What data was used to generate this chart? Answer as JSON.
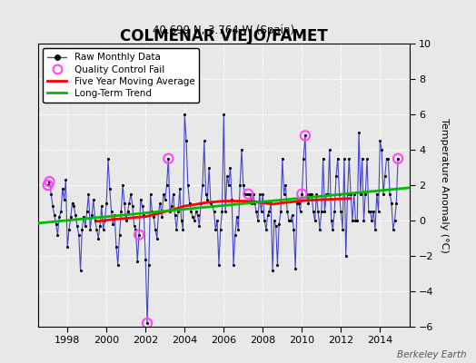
{
  "title": "COLMENAR VIEJO/FAMET",
  "subtitle": "40.699 N, 3.764 W (Spain)",
  "ylabel": "Temperature Anomaly (°C)",
  "credit": "Berkeley Earth",
  "ylim": [
    -6,
    10
  ],
  "yticks": [
    -6,
    -4,
    -2,
    0,
    2,
    4,
    6,
    8,
    10
  ],
  "xlim": [
    1996.5,
    2015.5
  ],
  "xticks": [
    1998,
    2000,
    2002,
    2004,
    2006,
    2008,
    2010,
    2012,
    2014
  ],
  "background_color": "#e8e8e8",
  "plot_bg_color": "#e8e8e8",
  "raw_line_color": "#4444cc",
  "raw_marker_color": "#000000",
  "moving_avg_color": "#ff0000",
  "trend_color": "#00bb00",
  "qc_fail_color": "#ff44ff",
  "raw_monthly": [
    [
      1997.0,
      2.0
    ],
    [
      1997.083,
      2.2
    ],
    [
      1997.167,
      1.5
    ],
    [
      1997.25,
      0.8
    ],
    [
      1997.333,
      0.3
    ],
    [
      1997.417,
      -0.2
    ],
    [
      1997.5,
      -0.8
    ],
    [
      1997.583,
      0.2
    ],
    [
      1997.667,
      0.5
    ],
    [
      1997.75,
      1.8
    ],
    [
      1997.833,
      1.2
    ],
    [
      1997.917,
      2.3
    ],
    [
      1998.0,
      -1.5
    ],
    [
      1998.083,
      -0.5
    ],
    [
      1998.167,
      0.2
    ],
    [
      1998.25,
      1.0
    ],
    [
      1998.333,
      0.8
    ],
    [
      1998.417,
      0.3
    ],
    [
      1998.5,
      -0.3
    ],
    [
      1998.583,
      -0.8
    ],
    [
      1998.667,
      -2.8
    ],
    [
      1998.75,
      -0.5
    ],
    [
      1998.833,
      0.2
    ],
    [
      1998.917,
      -0.3
    ],
    [
      1999.0,
      0.5
    ],
    [
      1999.083,
      1.5
    ],
    [
      1999.167,
      -0.5
    ],
    [
      1999.25,
      0.3
    ],
    [
      1999.333,
      1.2
    ],
    [
      1999.417,
      0.0
    ],
    [
      1999.5,
      -0.5
    ],
    [
      1999.583,
      -1.0
    ],
    [
      1999.667,
      -0.3
    ],
    [
      1999.75,
      0.8
    ],
    [
      1999.833,
      -0.5
    ],
    [
      1999.917,
      0.0
    ],
    [
      2000.0,
      1.0
    ],
    [
      2000.083,
      3.5
    ],
    [
      2000.167,
      1.8
    ],
    [
      2000.25,
      0.5
    ],
    [
      2000.333,
      -0.2
    ],
    [
      2000.417,
      0.3
    ],
    [
      2000.5,
      -1.5
    ],
    [
      2000.583,
      -2.5
    ],
    [
      2000.667,
      -0.8
    ],
    [
      2000.75,
      0.5
    ],
    [
      2000.833,
      2.0
    ],
    [
      2000.917,
      1.0
    ],
    [
      2001.0,
      0.0
    ],
    [
      2001.083,
      0.5
    ],
    [
      2001.167,
      1.0
    ],
    [
      2001.25,
      1.5
    ],
    [
      2001.333,
      0.8
    ],
    [
      2001.417,
      -0.3
    ],
    [
      2001.5,
      -0.5
    ],
    [
      2001.583,
      -2.3
    ],
    [
      2001.667,
      -0.8
    ],
    [
      2001.75,
      1.2
    ],
    [
      2001.833,
      0.8
    ],
    [
      2001.917,
      0.3
    ],
    [
      2002.0,
      -2.2
    ],
    [
      2002.083,
      -5.8
    ],
    [
      2002.167,
      -2.5
    ],
    [
      2002.25,
      1.5
    ],
    [
      2002.333,
      0.5
    ],
    [
      2002.417,
      0.2
    ],
    [
      2002.5,
      -0.5
    ],
    [
      2002.583,
      -1.0
    ],
    [
      2002.667,
      0.5
    ],
    [
      2002.75,
      1.0
    ],
    [
      2002.833,
      0.2
    ],
    [
      2002.917,
      1.5
    ],
    [
      2003.0,
      1.2
    ],
    [
      2003.083,
      2.0
    ],
    [
      2003.167,
      3.5
    ],
    [
      2003.25,
      0.5
    ],
    [
      2003.333,
      0.8
    ],
    [
      2003.417,
      1.5
    ],
    [
      2003.5,
      0.3
    ],
    [
      2003.583,
      -0.5
    ],
    [
      2003.667,
      0.5
    ],
    [
      2003.75,
      1.8
    ],
    [
      2003.833,
      0.0
    ],
    [
      2003.917,
      -0.5
    ],
    [
      2004.0,
      6.0
    ],
    [
      2004.083,
      4.5
    ],
    [
      2004.167,
      2.0
    ],
    [
      2004.25,
      1.0
    ],
    [
      2004.333,
      0.5
    ],
    [
      2004.417,
      0.2
    ],
    [
      2004.5,
      0.0
    ],
    [
      2004.583,
      0.5
    ],
    [
      2004.667,
      0.3
    ],
    [
      2004.75,
      -0.3
    ],
    [
      2004.833,
      1.0
    ],
    [
      2004.917,
      2.0
    ],
    [
      2005.0,
      4.5
    ],
    [
      2005.083,
      1.5
    ],
    [
      2005.167,
      1.2
    ],
    [
      2005.25,
      3.0
    ],
    [
      2005.333,
      1.0
    ],
    [
      2005.417,
      0.8
    ],
    [
      2005.5,
      0.5
    ],
    [
      2005.583,
      -0.5
    ],
    [
      2005.667,
      0.0
    ],
    [
      2005.75,
      -2.5
    ],
    [
      2005.833,
      -0.5
    ],
    [
      2005.917,
      0.5
    ],
    [
      2006.0,
      6.0
    ],
    [
      2006.083,
      0.5
    ],
    [
      2006.167,
      2.5
    ],
    [
      2006.25,
      2.0
    ],
    [
      2006.333,
      3.0
    ],
    [
      2006.417,
      1.2
    ],
    [
      2006.5,
      -2.5
    ],
    [
      2006.583,
      -0.8
    ],
    [
      2006.667,
      0.2
    ],
    [
      2006.75,
      -0.5
    ],
    [
      2006.833,
      2.0
    ],
    [
      2006.917,
      4.0
    ],
    [
      2007.0,
      2.0
    ],
    [
      2007.083,
      1.5
    ],
    [
      2007.167,
      1.5
    ],
    [
      2007.25,
      1.5
    ],
    [
      2007.333,
      1.5
    ],
    [
      2007.417,
      1.0
    ],
    [
      2007.5,
      1.5
    ],
    [
      2007.583,
      1.0
    ],
    [
      2007.667,
      0.5
    ],
    [
      2007.75,
      0.0
    ],
    [
      2007.833,
      1.5
    ],
    [
      2007.917,
      0.5
    ],
    [
      2008.0,
      1.5
    ],
    [
      2008.083,
      0.0
    ],
    [
      2008.167,
      -0.5
    ],
    [
      2008.25,
      0.3
    ],
    [
      2008.333,
      0.5
    ],
    [
      2008.417,
      1.0
    ],
    [
      2008.5,
      -2.8
    ],
    [
      2008.583,
      0.0
    ],
    [
      2008.667,
      -0.3
    ],
    [
      2008.75,
      -2.5
    ],
    [
      2008.833,
      -0.2
    ],
    [
      2008.917,
      0.5
    ],
    [
      2009.0,
      3.5
    ],
    [
      2009.083,
      1.5
    ],
    [
      2009.167,
      2.0
    ],
    [
      2009.25,
      0.5
    ],
    [
      2009.333,
      0.0
    ],
    [
      2009.417,
      0.0
    ],
    [
      2009.5,
      0.3
    ],
    [
      2009.583,
      -0.5
    ],
    [
      2009.667,
      -2.7
    ],
    [
      2009.75,
      1.0
    ],
    [
      2009.833,
      1.0
    ],
    [
      2009.917,
      0.5
    ],
    [
      2010.0,
      1.5
    ],
    [
      2010.083,
      3.5
    ],
    [
      2010.167,
      4.8
    ],
    [
      2010.25,
      1.5
    ],
    [
      2010.333,
      1.0
    ],
    [
      2010.417,
      1.5
    ],
    [
      2010.5,
      1.5
    ],
    [
      2010.583,
      0.5
    ],
    [
      2010.667,
      0.0
    ],
    [
      2010.75,
      1.5
    ],
    [
      2010.833,
      0.5
    ],
    [
      2010.917,
      -0.5
    ],
    [
      2011.0,
      0.5
    ],
    [
      2011.083,
      3.5
    ],
    [
      2011.167,
      0.5
    ],
    [
      2011.25,
      1.5
    ],
    [
      2011.333,
      1.5
    ],
    [
      2011.417,
      4.0
    ],
    [
      2011.5,
      0.0
    ],
    [
      2011.583,
      -0.5
    ],
    [
      2011.667,
      0.5
    ],
    [
      2011.75,
      2.5
    ],
    [
      2011.833,
      3.5
    ],
    [
      2011.917,
      1.5
    ],
    [
      2012.0,
      0.5
    ],
    [
      2012.083,
      -0.5
    ],
    [
      2012.167,
      3.5
    ],
    [
      2012.25,
      -2.0
    ],
    [
      2012.333,
      1.5
    ],
    [
      2012.417,
      3.5
    ],
    [
      2012.5,
      1.5
    ],
    [
      2012.583,
      0.0
    ],
    [
      2012.667,
      1.5
    ],
    [
      2012.75,
      0.0
    ],
    [
      2012.833,
      0.0
    ],
    [
      2012.917,
      5.0
    ],
    [
      2013.0,
      1.5
    ],
    [
      2013.083,
      3.5
    ],
    [
      2013.167,
      0.0
    ],
    [
      2013.25,
      1.5
    ],
    [
      2013.333,
      3.5
    ],
    [
      2013.417,
      0.5
    ],
    [
      2013.5,
      0.5
    ],
    [
      2013.583,
      0.0
    ],
    [
      2013.667,
      0.5
    ],
    [
      2013.75,
      -0.5
    ],
    [
      2013.833,
      1.5
    ],
    [
      2013.917,
      0.5
    ],
    [
      2014.0,
      4.5
    ],
    [
      2014.083,
      4.0
    ],
    [
      2014.167,
      1.5
    ],
    [
      2014.25,
      2.5
    ],
    [
      2014.333,
      3.5
    ],
    [
      2014.417,
      3.5
    ],
    [
      2014.5,
      1.5
    ],
    [
      2014.583,
      1.0
    ],
    [
      2014.667,
      -0.5
    ],
    [
      2014.75,
      0.0
    ],
    [
      2014.833,
      1.0
    ],
    [
      2014.917,
      3.5
    ]
  ],
  "qc_fail_points": [
    [
      1997.0,
      2.0
    ],
    [
      1997.083,
      2.2
    ],
    [
      2001.667,
      -0.8
    ],
    [
      2002.083,
      -5.8
    ],
    [
      2003.167,
      3.5
    ],
    [
      2007.25,
      1.5
    ],
    [
      2010.0,
      1.5
    ],
    [
      2010.167,
      4.8
    ],
    [
      2014.917,
      3.5
    ]
  ],
  "moving_avg": [
    [
      1999.5,
      -0.05
    ],
    [
      2000.0,
      0.02
    ],
    [
      2000.5,
      0.08
    ],
    [
      2001.0,
      0.12
    ],
    [
      2001.5,
      0.18
    ],
    [
      2002.0,
      0.22
    ],
    [
      2002.5,
      0.35
    ],
    [
      2003.0,
      0.5
    ],
    [
      2003.5,
      0.65
    ],
    [
      2004.0,
      0.82
    ],
    [
      2004.5,
      0.9
    ],
    [
      2005.0,
      1.0
    ],
    [
      2005.5,
      1.05
    ],
    [
      2006.0,
      1.1
    ],
    [
      2006.5,
      1.1
    ],
    [
      2007.0,
      1.1
    ],
    [
      2007.5,
      1.08
    ],
    [
      2008.0,
      1.0
    ],
    [
      2008.5,
      0.92
    ],
    [
      2009.0,
      1.0
    ],
    [
      2009.5,
      1.05
    ],
    [
      2010.0,
      1.12
    ],
    [
      2010.5,
      1.15
    ],
    [
      2011.0,
      1.18
    ],
    [
      2011.5,
      1.2
    ],
    [
      2012.0,
      1.22
    ],
    [
      2012.5,
      1.25
    ]
  ],
  "trend_x": [
    1996.5,
    2015.5
  ],
  "trend_y": [
    -0.15,
    1.85
  ]
}
